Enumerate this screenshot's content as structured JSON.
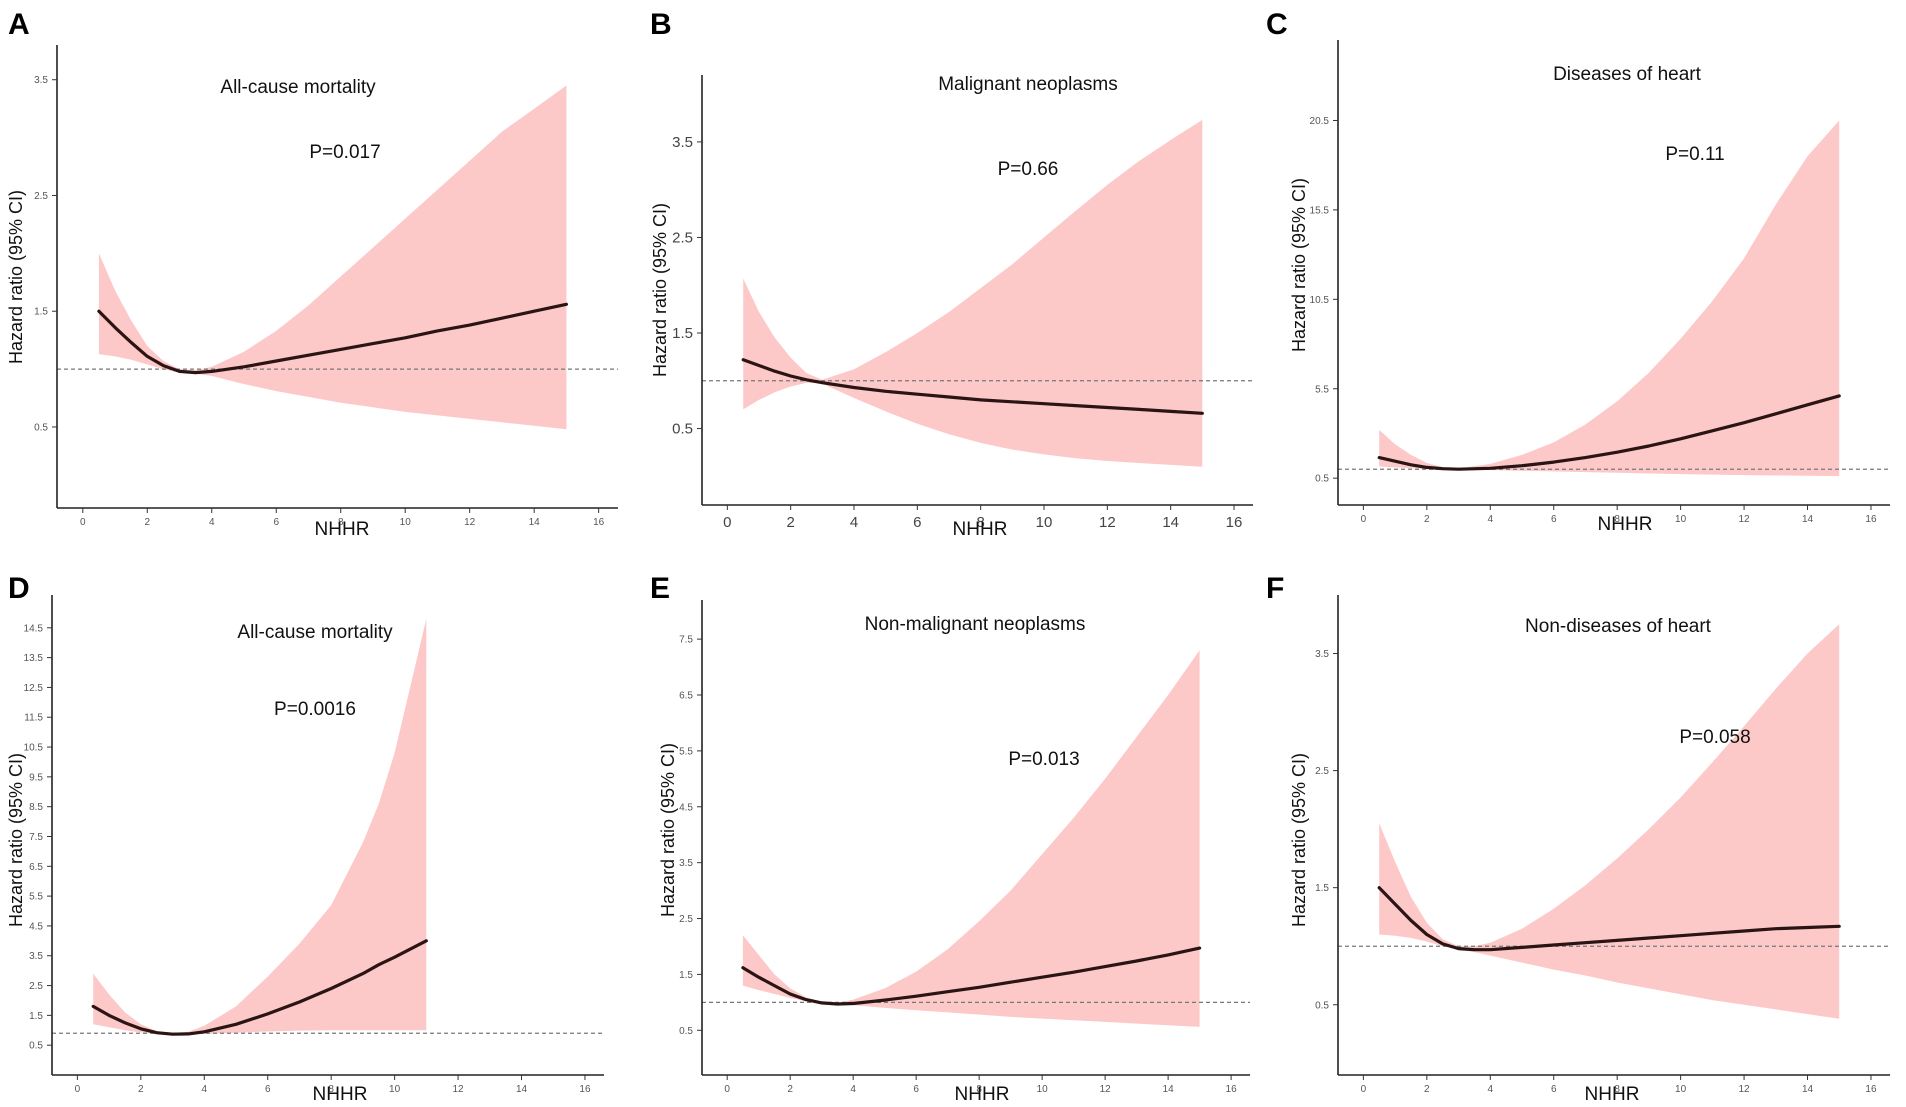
{
  "chart_data": [
    {
      "panel": "A",
      "type": "line",
      "title": "All-cause mortality",
      "annotation": "P=0.017",
      "xlabel": "NHHR",
      "ylabel": "Hazard ratio (95% CI)",
      "xlim": [
        -0.8,
        16.6
      ],
      "ylim": [
        -0.2,
        3.8
      ],
      "xticks": [
        0,
        2,
        4,
        6,
        8,
        10,
        12,
        14,
        16
      ],
      "xtick_labels": [
        "0",
        "2",
        "4",
        "6",
        "8",
        "10",
        "12",
        "14",
        "16"
      ],
      "yticks": [
        0.5,
        1.5,
        2.5,
        3.5
      ],
      "ytick_labels": [
        "0.5",
        "1.5",
        "2.5",
        "3.5"
      ],
      "reference": 1.0,
      "large_ticks": false,
      "x": [
        0.5,
        1,
        1.5,
        2,
        2.5,
        3,
        3.5,
        4,
        5,
        6,
        7,
        8,
        9,
        10,
        11,
        12,
        13,
        14,
        15
      ],
      "hr": [
        1.5,
        1.36,
        1.23,
        1.11,
        1.03,
        0.98,
        0.97,
        0.98,
        1.02,
        1.07,
        1.12,
        1.17,
        1.22,
        1.27,
        1.33,
        1.38,
        1.44,
        1.5,
        1.56
      ],
      "lower": [
        1.13,
        1.11,
        1.08,
        1.04,
        1.0,
        0.97,
        0.96,
        0.94,
        0.87,
        0.81,
        0.76,
        0.71,
        0.67,
        0.63,
        0.6,
        0.57,
        0.54,
        0.51,
        0.48
      ],
      "upper": [
        2.0,
        1.68,
        1.42,
        1.2,
        1.07,
        1.0,
        0.99,
        1.02,
        1.15,
        1.33,
        1.55,
        1.8,
        2.05,
        2.3,
        2.55,
        2.8,
        3.05,
        3.25,
        3.45
      ]
    },
    {
      "panel": "B",
      "type": "line",
      "title": "Malignant neoplasms",
      "annotation": "P=0.66",
      "xlabel": "NHHR",
      "ylabel": "Hazard ratio (95% CI)",
      "xlim": [
        -0.8,
        16.6
      ],
      "ylim": [
        -0.3,
        4.2
      ],
      "xticks": [
        0,
        2,
        4,
        6,
        8,
        10,
        12,
        14,
        16
      ],
      "xtick_labels": [
        "0",
        "2",
        "4",
        "6",
        "8",
        "10",
        "12",
        "14",
        "16"
      ],
      "yticks": [
        0.5,
        1.5,
        2.5,
        3.5
      ],
      "ytick_labels": [
        "0.5",
        "1.5",
        "2.5",
        "3.5"
      ],
      "reference": 1.0,
      "large_ticks": true,
      "x": [
        0.5,
        1,
        1.5,
        2,
        2.5,
        3,
        4,
        5,
        6,
        7,
        8,
        9,
        10,
        11,
        12,
        13,
        14,
        15
      ],
      "hr": [
        1.22,
        1.16,
        1.1,
        1.05,
        1.01,
        0.98,
        0.93,
        0.89,
        0.86,
        0.83,
        0.8,
        0.78,
        0.76,
        0.74,
        0.72,
        0.7,
        0.68,
        0.66
      ],
      "lower": [
        0.7,
        0.8,
        0.88,
        0.94,
        0.98,
        0.97,
        0.82,
        0.68,
        0.55,
        0.44,
        0.35,
        0.28,
        0.23,
        0.19,
        0.16,
        0.14,
        0.12,
        0.1
      ],
      "upper": [
        2.07,
        1.72,
        1.45,
        1.24,
        1.08,
        1.01,
        1.12,
        1.3,
        1.5,
        1.72,
        1.97,
        2.22,
        2.5,
        2.78,
        3.05,
        3.3,
        3.52,
        3.73
      ]
    },
    {
      "panel": "C",
      "type": "line",
      "title": "Diseases of heart",
      "annotation": "P=0.11",
      "xlabel": "NHHR",
      "ylabel": "Hazard ratio (95% CI)",
      "xlim": [
        -0.8,
        16.6
      ],
      "ylim": [
        -1.0,
        25.0
      ],
      "xticks": [
        0,
        2,
        4,
        6,
        8,
        10,
        12,
        14,
        16
      ],
      "xtick_labels": [
        "0",
        "2",
        "4",
        "6",
        "8",
        "10",
        "12",
        "14",
        "16"
      ],
      "yticks": [
        0.5,
        5.5,
        10.5,
        15.5,
        20.5
      ],
      "ytick_labels": [
        "0.5",
        "5.5",
        "10.5",
        "15.5",
        "20.5"
      ],
      "reference": 1.0,
      "large_ticks": false,
      "x": [
        0.5,
        1,
        1.5,
        2,
        2.5,
        3,
        4,
        5,
        6,
        7,
        8,
        9,
        10,
        11,
        12,
        13,
        14,
        15
      ],
      "hr": [
        1.65,
        1.45,
        1.25,
        1.1,
        1.03,
        1.0,
        1.05,
        1.2,
        1.4,
        1.65,
        1.95,
        2.3,
        2.7,
        3.15,
        3.6,
        4.1,
        4.6,
        5.1
      ],
      "lower": [
        1.15,
        1.1,
        1.05,
        1.01,
        0.98,
        0.97,
        0.95,
        0.92,
        0.88,
        0.84,
        0.8,
        0.76,
        0.73,
        0.7,
        0.67,
        0.65,
        0.63,
        0.62
      ],
      "upper": [
        3.2,
        2.4,
        1.8,
        1.35,
        1.12,
        1.04,
        1.3,
        1.8,
        2.5,
        3.5,
        4.8,
        6.4,
        8.3,
        10.4,
        12.8,
        15.8,
        18.5,
        20.5
      ]
    },
    {
      "panel": "D",
      "type": "line",
      "title": "All-cause mortality",
      "annotation": "P=0.0016",
      "xlabel": "NHHR",
      "ylabel": "Hazard ratio (95% CI)",
      "xlim": [
        -0.8,
        16.6
      ],
      "ylim": [
        -0.5,
        15.6
      ],
      "xticks": [
        0,
        2,
        4,
        6,
        8,
        10,
        12,
        14,
        16
      ],
      "xtick_labels": [
        "0",
        "2",
        "4",
        "6",
        "8",
        "10",
        "12",
        "14",
        "16"
      ],
      "yticks": [
        0.5,
        1.5,
        2.5,
        3.5,
        4.5,
        5.5,
        6.5,
        7.5,
        8.5,
        9.5,
        10.5,
        11.5,
        12.5,
        13.5,
        14.5
      ],
      "ytick_labels": [
        "0.5",
        "1.5",
        "2.5",
        "3.5",
        "4.5",
        "5.5",
        "6.5",
        "7.5",
        "8.5",
        "9.5",
        "10.5",
        "11.5",
        "12.5",
        "13.5",
        "14.5"
      ],
      "reference": 0.9,
      "large_ticks": false,
      "x": [
        0.5,
        1,
        1.5,
        2,
        2.5,
        3,
        3.5,
        4,
        5,
        6,
        7,
        8,
        9,
        9.5,
        10,
        11
      ],
      "hr": [
        1.8,
        1.5,
        1.25,
        1.05,
        0.92,
        0.87,
        0.88,
        0.95,
        1.2,
        1.55,
        1.95,
        2.4,
        2.9,
        3.2,
        3.45,
        4.0
      ],
      "lower": [
        1.2,
        1.1,
        1.0,
        0.93,
        0.88,
        0.85,
        0.86,
        0.88,
        0.92,
        0.96,
        0.99,
        1.0,
        1.0,
        1.0,
        1.0,
        1.0
      ],
      "upper": [
        2.9,
        2.2,
        1.6,
        1.2,
        0.97,
        0.9,
        0.95,
        1.15,
        1.8,
        2.8,
        3.9,
        5.2,
        7.3,
        8.6,
        10.3,
        14.8
      ]
    },
    {
      "panel": "E",
      "type": "line",
      "title": "Non-malignant neoplasms",
      "annotation": "P=0.013",
      "xlabel": "NHHR",
      "ylabel": "Hazard ratio (95% CI)",
      "xlim": [
        -0.8,
        16.6
      ],
      "ylim": [
        -0.3,
        8.2
      ],
      "xticks": [
        0,
        2,
        4,
        6,
        8,
        10,
        12,
        14,
        16
      ],
      "xtick_labels": [
        "0",
        "2",
        "4",
        "6",
        "8",
        "10",
        "12",
        "14",
        "16"
      ],
      "yticks": [
        0.5,
        1.5,
        2.5,
        3.5,
        4.5,
        5.5,
        6.5,
        7.5
      ],
      "ytick_labels": [
        "0.5",
        "1.5",
        "2.5",
        "3.5",
        "4.5",
        "5.5",
        "6.5",
        "7.5"
      ],
      "reference": 1.0,
      "large_ticks": false,
      "x": [
        0.5,
        1,
        1.5,
        2,
        2.5,
        3,
        3.5,
        4,
        5,
        6,
        7,
        8,
        9,
        10,
        11,
        12,
        13,
        14,
        15
      ],
      "hr": [
        1.62,
        1.45,
        1.3,
        1.15,
        1.05,
        0.99,
        0.97,
        0.98,
        1.04,
        1.11,
        1.19,
        1.27,
        1.36,
        1.45,
        1.54,
        1.64,
        1.74,
        1.85,
        1.97
      ],
      "lower": [
        1.3,
        1.22,
        1.15,
        1.08,
        1.02,
        0.98,
        0.96,
        0.95,
        0.9,
        0.86,
        0.82,
        0.78,
        0.74,
        0.71,
        0.68,
        0.65,
        0.62,
        0.59,
        0.56
      ],
      "upper": [
        2.2,
        1.85,
        1.5,
        1.25,
        1.09,
        1.01,
        0.99,
        1.05,
        1.25,
        1.55,
        1.95,
        2.45,
        3.0,
        3.65,
        4.3,
        5.0,
        5.75,
        6.5,
        7.3
      ]
    },
    {
      "panel": "F",
      "type": "line",
      "title": "Non-diseases of heart",
      "annotation": "P=0.058",
      "xlabel": "NHHR",
      "ylabel": "Hazard ratio (95% CI)",
      "xlim": [
        -0.8,
        16.6
      ],
      "ylim": [
        -0.1,
        4.0
      ],
      "xticks": [
        0,
        2,
        4,
        6,
        8,
        10,
        12,
        14,
        16
      ],
      "xtick_labels": [
        "0",
        "2",
        "4",
        "6",
        "8",
        "10",
        "12",
        "14",
        "16"
      ],
      "yticks": [
        0.5,
        1.5,
        2.5,
        3.5
      ],
      "ytick_labels": [
        "0.5",
        "1.5",
        "2.5",
        "3.5"
      ],
      "reference": 1.0,
      "large_ticks": false,
      "x": [
        0.5,
        1,
        1.5,
        2,
        2.5,
        3,
        3.5,
        4,
        5,
        6,
        7,
        8,
        9,
        10,
        11,
        12,
        13,
        14,
        15
      ],
      "hr": [
        1.5,
        1.36,
        1.22,
        1.1,
        1.02,
        0.98,
        0.97,
        0.97,
        0.99,
        1.01,
        1.03,
        1.05,
        1.07,
        1.09,
        1.11,
        1.13,
        1.15,
        1.16,
        1.17
      ],
      "lower": [
        1.1,
        1.09,
        1.07,
        1.04,
        1.0,
        0.97,
        0.95,
        0.92,
        0.86,
        0.8,
        0.75,
        0.69,
        0.64,
        0.59,
        0.54,
        0.5,
        0.46,
        0.42,
        0.38
      ],
      "upper": [
        2.05,
        1.72,
        1.42,
        1.2,
        1.06,
        1.0,
        1.0,
        1.03,
        1.15,
        1.32,
        1.52,
        1.75,
        2.0,
        2.27,
        2.57,
        2.88,
        3.2,
        3.5,
        3.75
      ]
    }
  ]
}
